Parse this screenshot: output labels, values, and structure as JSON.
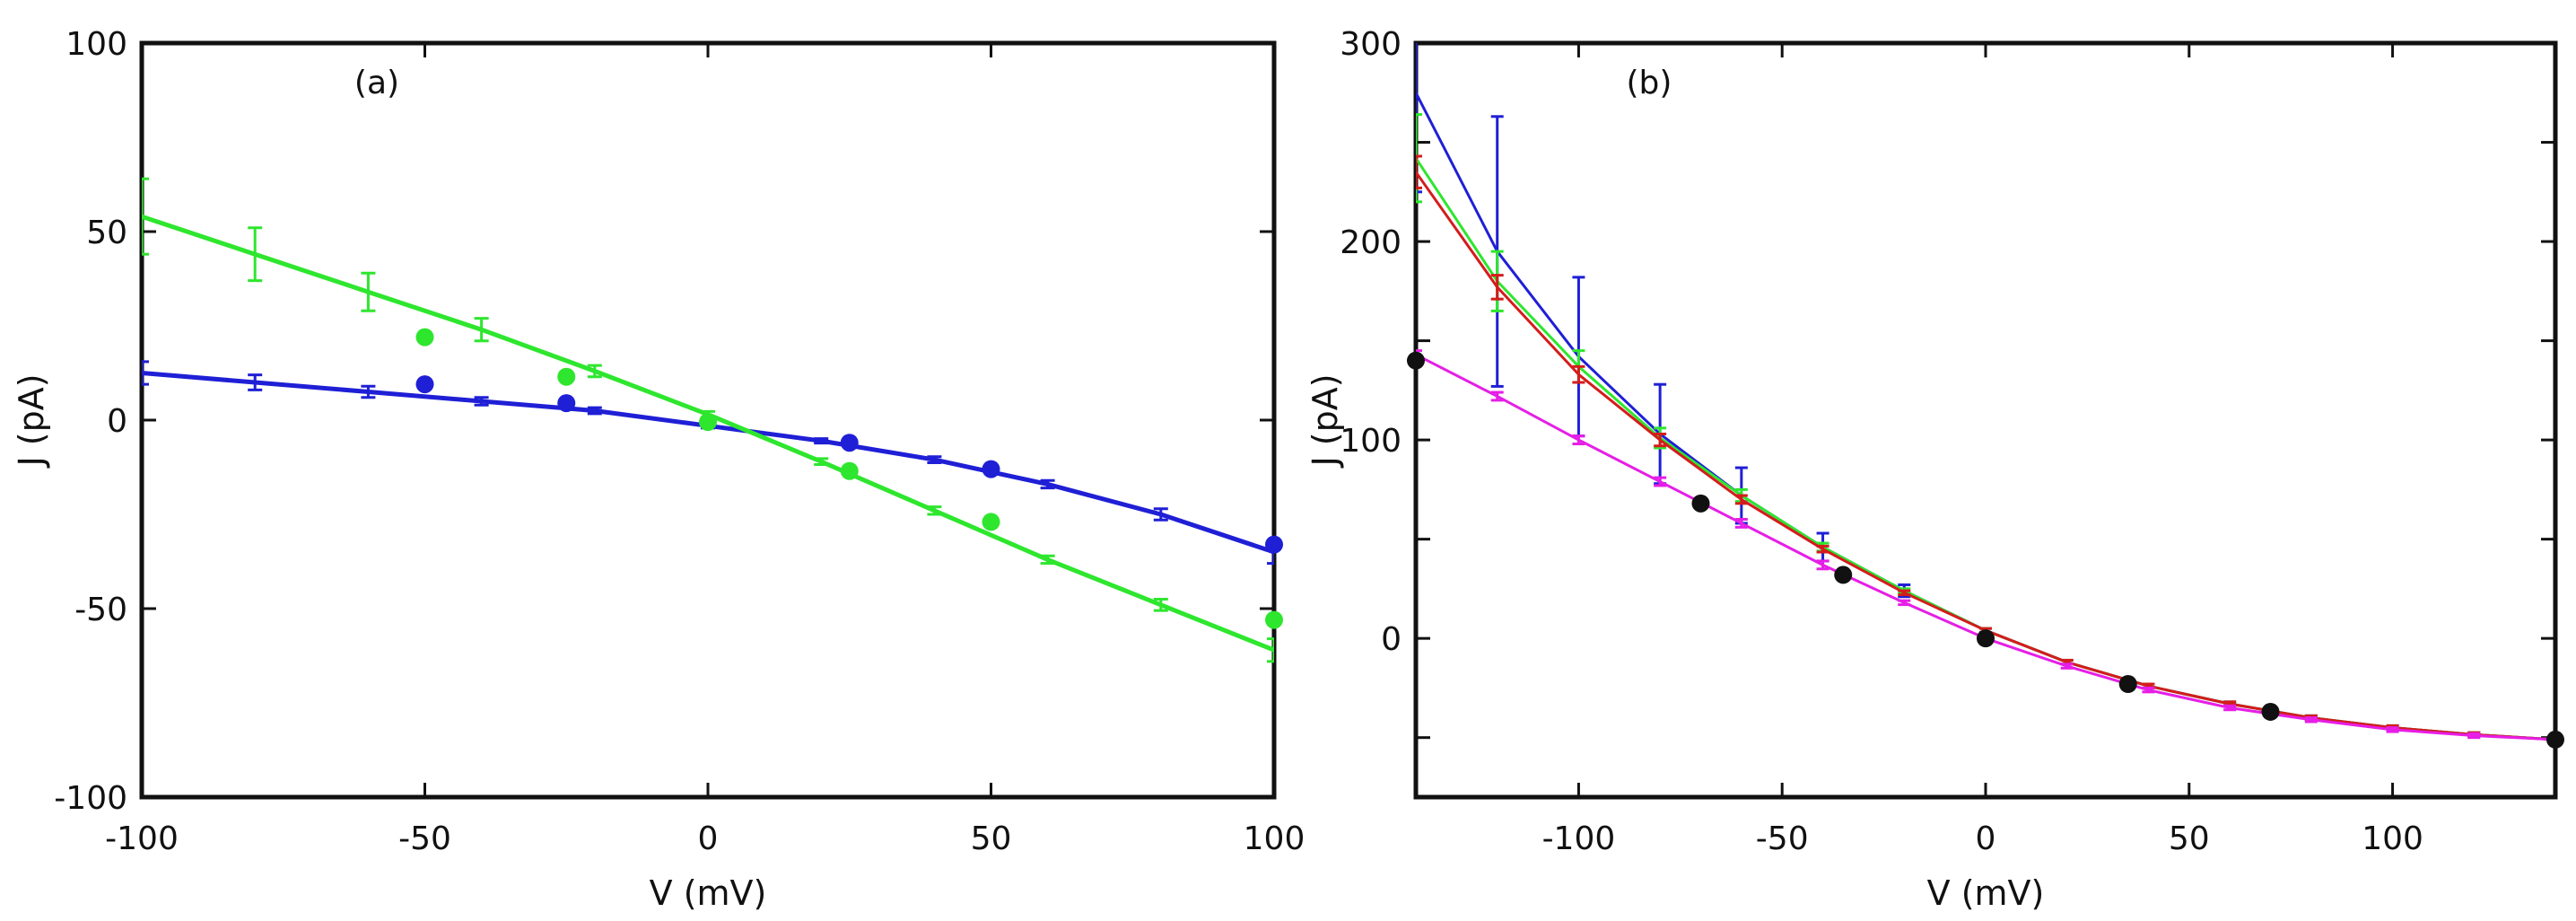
{
  "chart_data": [
    {
      "panel_label": "(a)",
      "type": "line",
      "xlabel": "V  (mV)",
      "ylabel": "J  (pA)",
      "xlim": [
        -100,
        100
      ],
      "ylim": [
        -100,
        100
      ],
      "xticks": [
        -100,
        -50,
        0,
        50,
        100
      ],
      "yticks": [
        -100,
        -50,
        0,
        50,
        100
      ],
      "xtick_labels": [
        "-100",
        "-50",
        "0",
        "50",
        "100"
      ],
      "ytick_labels": [
        "-100",
        "-50",
        "0",
        "50",
        "100"
      ],
      "grid": false,
      "series": [
        {
          "name": "blue",
          "color": "#1f1fd6",
          "x": [
            -100,
            -80,
            -60,
            -40,
            -20,
            0,
            20,
            40,
            60,
            80,
            100
          ],
          "y": [
            12.5,
            10,
            7.5,
            5,
            2.5,
            -1.5,
            -5.5,
            -10.5,
            -17,
            -25,
            -35
          ],
          "err": [
            3,
            2,
            1.5,
            1,
            0.8,
            0.6,
            0.6,
            0.8,
            1,
            1.5,
            3
          ]
        },
        {
          "name": "green",
          "color": "#2ee62e",
          "x": [
            -100,
            -80,
            -60,
            -40,
            -20,
            0,
            20,
            40,
            60,
            80,
            100
          ],
          "y": [
            54,
            44,
            34,
            24,
            13,
            1.5,
            -11,
            -24,
            -37,
            -49,
            -61
          ],
          "err": [
            10,
            7,
            5,
            3,
            1.5,
            0.8,
            0.8,
            1,
            1,
            1.5,
            3
          ]
        }
      ],
      "points": [
        {
          "name": "blue-points",
          "color": "#1f1fd6",
          "x": [
            -50,
            -25,
            25,
            50,
            100
          ],
          "y": [
            9.5,
            4.5,
            -6,
            -13,
            -33
          ]
        },
        {
          "name": "green-points",
          "color": "#2ee62e",
          "x": [
            -50,
            -25,
            0,
            25,
            50,
            100
          ],
          "y": [
            22,
            11.5,
            -0.5,
            -13.5,
            -27,
            -53
          ]
        }
      ]
    },
    {
      "panel_label": "(b)",
      "type": "line",
      "xlabel": "V  (mV)",
      "ylabel": "J  (pA)",
      "xlim": [
        -140,
        140
      ],
      "ylim": [
        -80,
        300
      ],
      "xticks": [
        -100,
        -50,
        0,
        50,
        100
      ],
      "yticks": [
        0,
        100,
        200,
        300
      ],
      "xtick_labels": [
        "-100",
        "-50",
        "0",
        "50",
        "100"
      ],
      "ytick_labels": [
        "0",
        "100",
        "200",
        "300"
      ],
      "minor_yticks": [
        -50,
        50,
        150,
        250
      ],
      "grid": false,
      "series": [
        {
          "name": "blue",
          "color": "#1f1fd6",
          "x": [
            -140,
            -120,
            -100,
            -80,
            -60,
            -40,
            -20,
            0,
            20,
            40,
            60,
            80,
            100,
            120,
            140
          ],
          "y": [
            275,
            195,
            142,
            103,
            72,
            46,
            24,
            4,
            -12,
            -24,
            -33,
            -40,
            -45,
            -48.5,
            -51
          ],
          "err": [
            50,
            68,
            40,
            25,
            14,
            7,
            3,
            1,
            1,
            1,
            1,
            1,
            1,
            1,
            1
          ]
        },
        {
          "name": "green",
          "color": "#2ee62e",
          "x": [
            -140,
            -120,
            -100,
            -80,
            -60,
            -40,
            -20,
            0,
            20,
            40,
            60,
            80,
            100,
            120,
            140
          ],
          "y": [
            242,
            180,
            137,
            101,
            72,
            46,
            24,
            4,
            -12,
            -24,
            -33,
            -40,
            -45,
            -48.5,
            -51
          ],
          "err": [
            22,
            15,
            8,
            5,
            3,
            2,
            1,
            1,
            1,
            1,
            1,
            1,
            1,
            1,
            1
          ]
        },
        {
          "name": "red",
          "color": "#d41c1c",
          "x": [
            -140,
            -120,
            -100,
            -80,
            -60,
            -40,
            -20,
            0,
            20,
            40,
            60,
            80,
            100,
            120,
            140
          ],
          "y": [
            235,
            177,
            133,
            100,
            70,
            45,
            23,
            4,
            -12,
            -24,
            -33,
            -40,
            -45,
            -48.5,
            -51
          ],
          "err": [
            8,
            6,
            4,
            3,
            2,
            1.5,
            1,
            1,
            1,
            1,
            1,
            1,
            1,
            1,
            1
          ]
        },
        {
          "name": "magenta",
          "color": "#e61ee6",
          "x": [
            -140,
            -120,
            -100,
            -80,
            -60,
            -40,
            -20,
            0,
            20,
            40,
            60,
            80,
            100,
            120,
            140
          ],
          "y": [
            143,
            122,
            100,
            79,
            58,
            37,
            18,
            0,
            -14,
            -26,
            -35,
            -41,
            -46,
            -49,
            -51
          ],
          "err": [
            2,
            2,
            2,
            2,
            2,
            2,
            1,
            1,
            1,
            1,
            1,
            1,
            1,
            1,
            1
          ]
        }
      ],
      "points": [
        {
          "name": "black-points",
          "color": "#111111",
          "x": [
            -140,
            -70,
            -35,
            0,
            35,
            70,
            140
          ],
          "y": [
            140,
            68,
            32,
            0,
            -23,
            -37,
            -51
          ]
        }
      ]
    }
  ]
}
